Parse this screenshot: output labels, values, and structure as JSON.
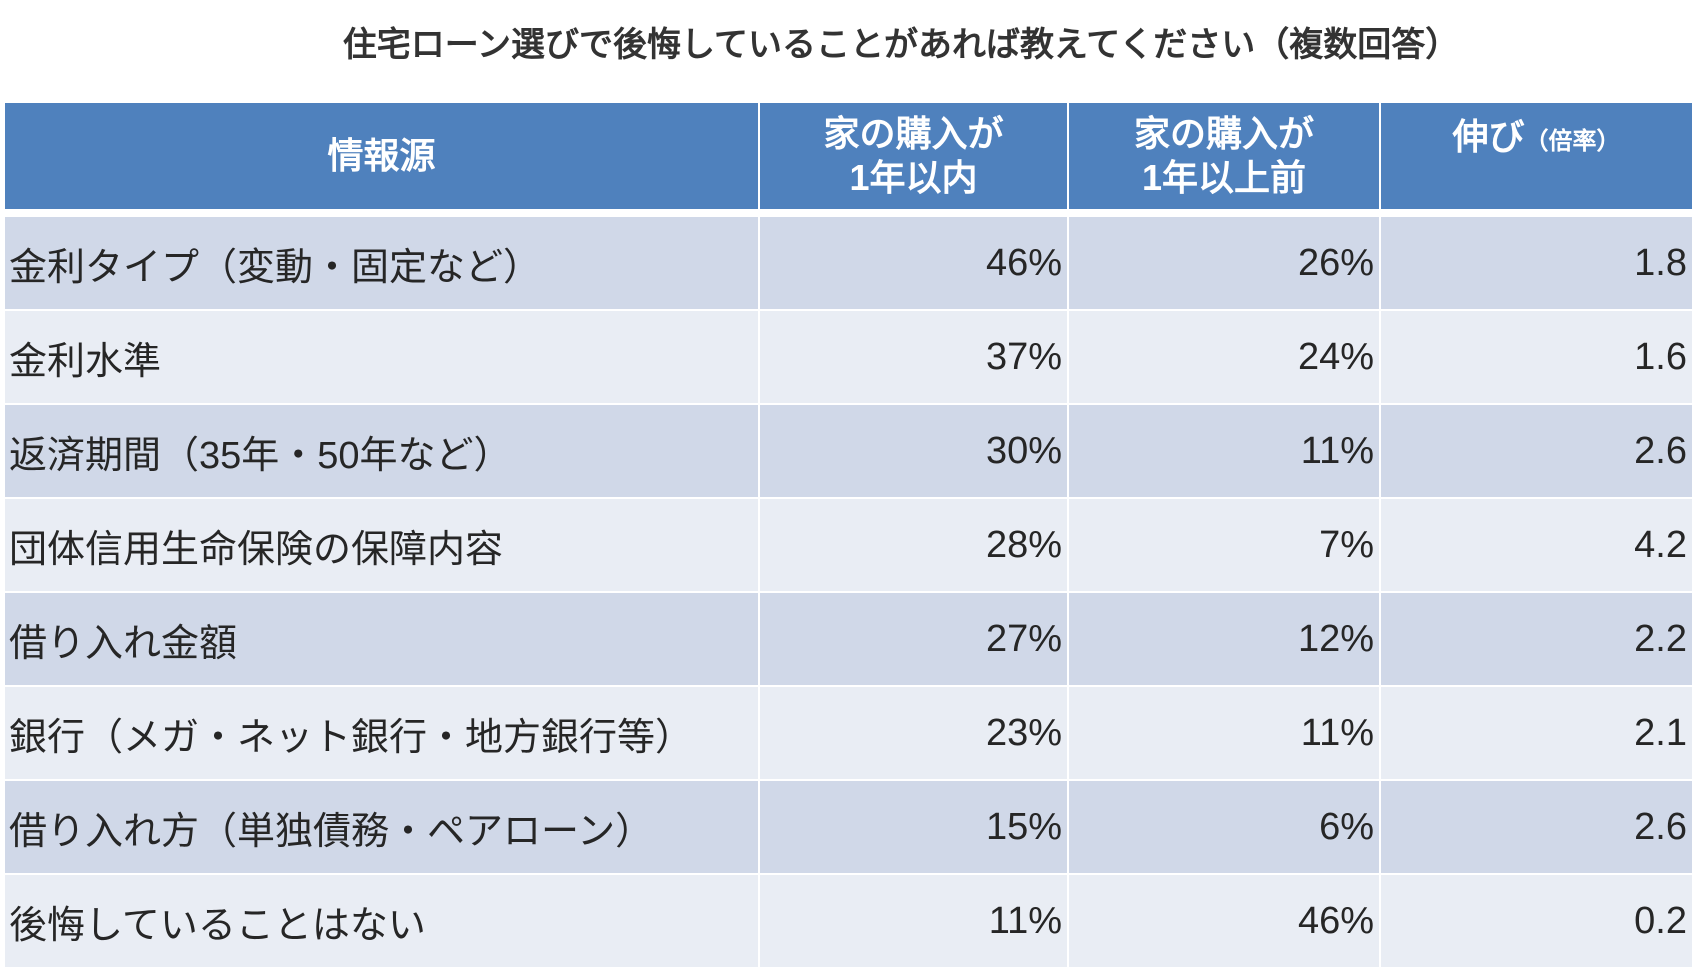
{
  "chart_data": {
    "type": "table",
    "title": "住宅ローン選びで後悔していることがあれば教えてください（複数回答）",
    "headers": {
      "source": "情報源",
      "within_1yr": [
        "家の購入が",
        "1年以内"
      ],
      "over_1yr": [
        "家の購入が",
        "1年以上前"
      ],
      "growth": {
        "label": "伸び",
        "note": "（倍率）"
      }
    },
    "rows": [
      {
        "item": "金利タイプ（変動・固定など）",
        "within_1yr": "46%",
        "over_1yr": "26%",
        "ratio": "1.8"
      },
      {
        "item": "金利水準",
        "within_1yr": "37%",
        "over_1yr": "24%",
        "ratio": "1.6"
      },
      {
        "item": "返済期間（35年・50年など）",
        "within_1yr": "30%",
        "over_1yr": "11%",
        "ratio": "2.6"
      },
      {
        "item": "団体信用生命保険の保障内容",
        "within_1yr": "28%",
        "over_1yr": "7%",
        "ratio": "4.2"
      },
      {
        "item": "借り入れ金額",
        "within_1yr": "27%",
        "over_1yr": "12%",
        "ratio": "2.2"
      },
      {
        "item": "銀行（メガ・ネット銀行・地方銀行等）",
        "within_1yr": "23%",
        "over_1yr": "11%",
        "ratio": "2.1"
      },
      {
        "item": "借り入れ方（単独債務・ペアローン）",
        "within_1yr": "15%",
        "over_1yr": "6%",
        "ratio": "2.6"
      },
      {
        "item": "後悔していることはない",
        "within_1yr": "11%",
        "over_1yr": "46%",
        "ratio": "0.2"
      }
    ]
  },
  "colors": {
    "header_bg": "#4F81BD",
    "header_text": "#FFFFFF",
    "row_odd_bg": "#D0D8E8",
    "row_even_bg": "#E9EDF4",
    "text": "#262626",
    "title_text": "#333333"
  }
}
